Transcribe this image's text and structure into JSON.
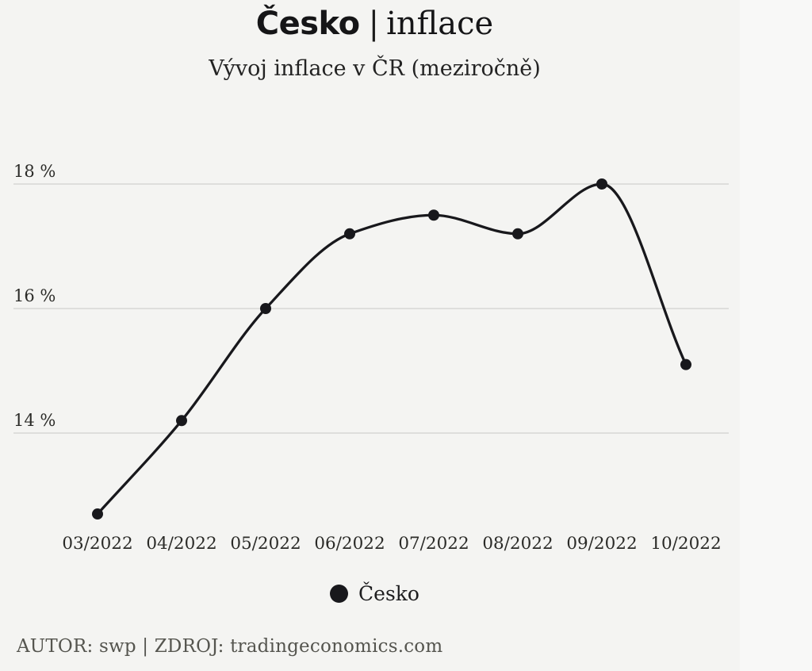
{
  "header": {
    "title_bold": "Česko",
    "title_separator": "|",
    "title_regular": "inflace",
    "subtitle": "Vývoj inflace v ČR (meziročně)"
  },
  "chart_data": {
    "type": "line",
    "categories": [
      "03/2022",
      "04/2022",
      "05/2022",
      "06/2022",
      "07/2022",
      "08/2022",
      "09/2022",
      "10/2022"
    ],
    "series": [
      {
        "name": "Česko",
        "values": [
          12.7,
          14.2,
          16.0,
          17.2,
          17.5,
          17.2,
          18.0,
          15.1
        ]
      }
    ],
    "unit": "%",
    "yticks": [
      18,
      16,
      14
    ],
    "ytick_labels": [
      "18 %",
      "16 %",
      "14 %"
    ],
    "ylim": [
      12.3,
      18.6
    ],
    "xlabel": "",
    "ylabel": "",
    "grid": "horizontal-only",
    "smooth": true,
    "marker": "filled-circle",
    "legend_position": "bottom"
  },
  "legend": {
    "label": "Česko"
  },
  "footer": {
    "credit": "AUTOR: swp | ZDROJ: tradingeconomics.com"
  },
  "colors": {
    "background": "#f4f4f2",
    "grid": "#d7d7d4",
    "line": "#18181c",
    "text": "#2b2b28",
    "muted_text": "#55554f"
  }
}
